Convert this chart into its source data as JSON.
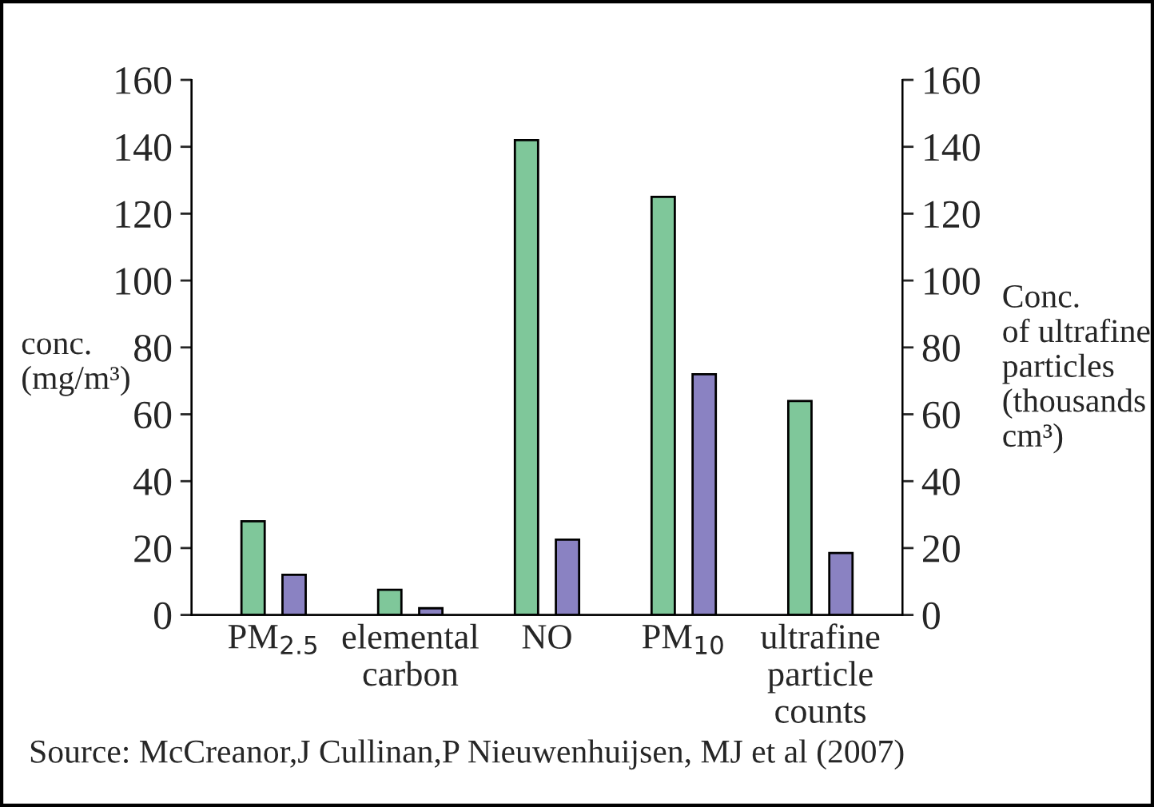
{
  "chart_data": {
    "type": "bar",
    "categories": [
      "PM$_{2.5}$",
      "elemental\ncarbon",
      "NO",
      "PM$_{10}$",
      "ultrafine\nparticle\ncounts"
    ],
    "series": [
      {
        "color": "#7fc79a",
        "values": [
          28,
          7.5,
          142,
          125,
          64
        ]
      },
      {
        "color": "#8a82c2",
        "values": [
          12,
          2,
          22.5,
          72,
          18.5
        ],
        "axis": "y2"
      }
    ],
    "ylabel": "conc.\n(mg/m³)",
    "y2label": "Conc.\nof ultrafine\nparticles\n(thousands\ncm³)",
    "ylim": [
      0,
      160
    ],
    "yticks": [
      0,
      20,
      40,
      60,
      80,
      100,
      120,
      140,
      160
    ],
    "y2lim": [
      0,
      160
    ],
    "y2ticks": [
      0,
      20,
      40,
      60,
      80,
      100,
      120,
      140,
      160
    ],
    "grid": false,
    "legend": false,
    "annotations": [
      "Source: McCreanor,J Cullinan,P Nieuwenhuijsen, MJ et al (2007)"
    ]
  }
}
